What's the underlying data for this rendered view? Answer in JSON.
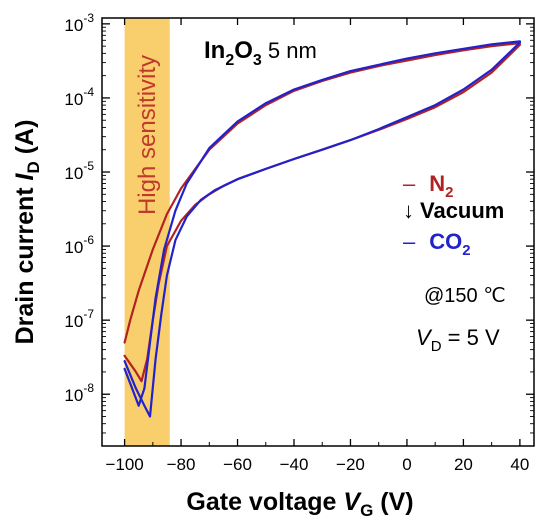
{
  "chart_data": {
    "type": "line",
    "y_scale": "log",
    "xlabel": {
      "text": "Gate voltage ",
      "symbol": "V",
      "subscript": "G",
      "unit": " (V)"
    },
    "ylabel": {
      "text": "Drain current ",
      "symbol": "I",
      "subscript": "D",
      "unit": " (A)"
    },
    "xlim": [
      -108,
      45
    ],
    "ylim": [
      2e-09,
      0.0012
    ],
    "x_ticks": [
      -100,
      -80,
      -60,
      -40,
      -20,
      0,
      20,
      40
    ],
    "x_tick_labels": [
      "−100",
      "−80",
      "−60",
      "−40",
      "−20",
      "0",
      "20",
      "40"
    ],
    "y_ticks": [
      1e-08,
      1e-07,
      1e-06,
      1e-05,
      0.0001,
      0.001
    ],
    "y_tick_labels": [
      {
        "base": "10",
        "exp": "-8"
      },
      {
        "base": "10",
        "exp": "-7"
      },
      {
        "base": "10",
        "exp": "-6"
      },
      {
        "base": "10",
        "exp": "-5"
      },
      {
        "base": "10",
        "exp": "-4"
      },
      {
        "base": "10",
        "exp": "-3"
      }
    ],
    "highlight_band": {
      "x_range": [
        -100,
        -84
      ],
      "label": "High sensitivity",
      "color": "#f9cf6e"
    },
    "material": {
      "base": "In",
      "sub1": "2",
      "mid": "O",
      "sub2": "3",
      "thickness": " 5 nm"
    },
    "conditions": {
      "temp": "@150 ℃",
      "vd_symbol": "V",
      "vd_sub": "D",
      "vd_value": " = 5 V"
    },
    "legend": {
      "placement": "right",
      "entries": [
        {
          "dash": "–",
          "base": "N",
          "sub": "2",
          "color": "#b22222"
        },
        {
          "dash": "↓",
          "base": "Vacuum",
          "sub": "",
          "color": "#000000"
        },
        {
          "dash": "–",
          "base": "CO",
          "sub": "2",
          "color": "#2222cc"
        }
      ]
    },
    "series": [
      {
        "color": "#b22222",
        "forward": [
          [
            -100,
            3.3e-08
          ],
          [
            -96,
            2e-08
          ],
          [
            -94,
            1.5e-08
          ],
          [
            -92,
            3e-08
          ],
          [
            -90,
            1e-07
          ],
          [
            -88,
            3e-07
          ],
          [
            -85,
            1e-06
          ],
          [
            -80,
            2.2e-06
          ],
          [
            -75,
            3.6e-06
          ],
          [
            -70,
            5e-06
          ],
          [
            -65,
            6.5e-06
          ],
          [
            -60,
            8e-06
          ],
          [
            -50,
            1.1e-05
          ],
          [
            -40,
            1.5e-05
          ],
          [
            -30,
            2e-05
          ],
          [
            -20,
            2.7e-05
          ],
          [
            -10,
            3.7e-05
          ],
          [
            0,
            5.2e-05
          ],
          [
            10,
            7.5e-05
          ],
          [
            20,
            0.00012
          ],
          [
            30,
            0.00022
          ],
          [
            40,
            0.00052
          ]
        ],
        "backward": [
          [
            40,
            0.00055
          ],
          [
            30,
            0.0005
          ],
          [
            20,
            0.00044
          ],
          [
            10,
            0.00038
          ],
          [
            0,
            0.00032
          ],
          [
            -10,
            0.00027
          ],
          [
            -20,
            0.00022
          ],
          [
            -30,
            0.00017
          ],
          [
            -40,
            0.000125
          ],
          [
            -50,
            8e-05
          ],
          [
            -60,
            4.5e-05
          ],
          [
            -70,
            2e-05
          ],
          [
            -80,
            6e-06
          ],
          [
            -85,
            2.7e-06
          ],
          [
            -90,
            9e-07
          ],
          [
            -95,
            2.5e-07
          ],
          [
            -98,
            1e-07
          ],
          [
            -100,
            5e-08
          ]
        ]
      },
      {
        "color": "#2222cc",
        "forward": [
          [
            -100,
            2.8e-08
          ],
          [
            -96,
            1.2e-08
          ],
          [
            -93,
            7e-09
          ],
          [
            -91,
            5e-09
          ],
          [
            -89,
            3e-08
          ],
          [
            -87,
            1.2e-07
          ],
          [
            -85,
            4e-07
          ],
          [
            -82,
            1.2e-06
          ],
          [
            -78,
            2.5e-06
          ],
          [
            -73,
            4.2e-06
          ],
          [
            -68,
            5.7e-06
          ],
          [
            -60,
            8e-06
          ],
          [
            -50,
            1.1e-05
          ],
          [
            -40,
            1.5e-05
          ],
          [
            -30,
            2e-05
          ],
          [
            -20,
            2.7e-05
          ],
          [
            -10,
            3.8e-05
          ],
          [
            0,
            5.5e-05
          ],
          [
            10,
            8e-05
          ],
          [
            20,
            0.00013
          ],
          [
            30,
            0.00024
          ],
          [
            40,
            0.00056
          ]
        ],
        "backward": [
          [
            40,
            0.00058
          ],
          [
            30,
            0.00053
          ],
          [
            20,
            0.00046
          ],
          [
            10,
            0.0004
          ],
          [
            0,
            0.00034
          ],
          [
            -10,
            0.00028
          ],
          [
            -20,
            0.00023
          ],
          [
            -30,
            0.000175
          ],
          [
            -40,
            0.00013
          ],
          [
            -50,
            8.5e-05
          ],
          [
            -60,
            4.8e-05
          ],
          [
            -70,
            2.1e-05
          ],
          [
            -78,
            7e-06
          ],
          [
            -82,
            3e-06
          ],
          [
            -86,
            9e-07
          ],
          [
            -89,
            2e-07
          ],
          [
            -91,
            5e-08
          ],
          [
            -93,
            1.2e-08
          ],
          [
            -95,
            7e-09
          ],
          [
            -98,
            1.4e-08
          ],
          [
            -100,
            2.2e-08
          ]
        ]
      }
    ]
  }
}
